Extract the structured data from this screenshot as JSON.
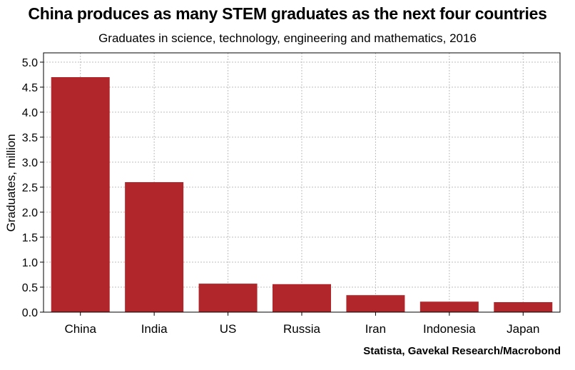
{
  "chart_data": {
    "type": "bar",
    "title": "China produces as many STEM graduates as the next four countries",
    "subtitle": "Graduates in science, technology, engineering and mathematics, 2016",
    "xlabel": "",
    "ylabel": "Graduates, million",
    "categories": [
      "China",
      "India",
      "US",
      "Russia",
      "Iran",
      "Indonesia",
      "Japan"
    ],
    "values": [
      4.7,
      2.6,
      0.57,
      0.56,
      0.34,
      0.21,
      0.2
    ],
    "ylim": [
      0,
      5.2
    ],
    "yticks": [
      "0.0",
      "0.5",
      "1.0",
      "1.5",
      "2.0",
      "2.5",
      "3.0",
      "3.5",
      "4.0",
      "4.5",
      "5.0"
    ],
    "grid": true,
    "source": "Statista, Gavekal Research/Macrobond"
  },
  "colors": {
    "bar": "#b0262a",
    "grid": "#bdbdbd"
  }
}
